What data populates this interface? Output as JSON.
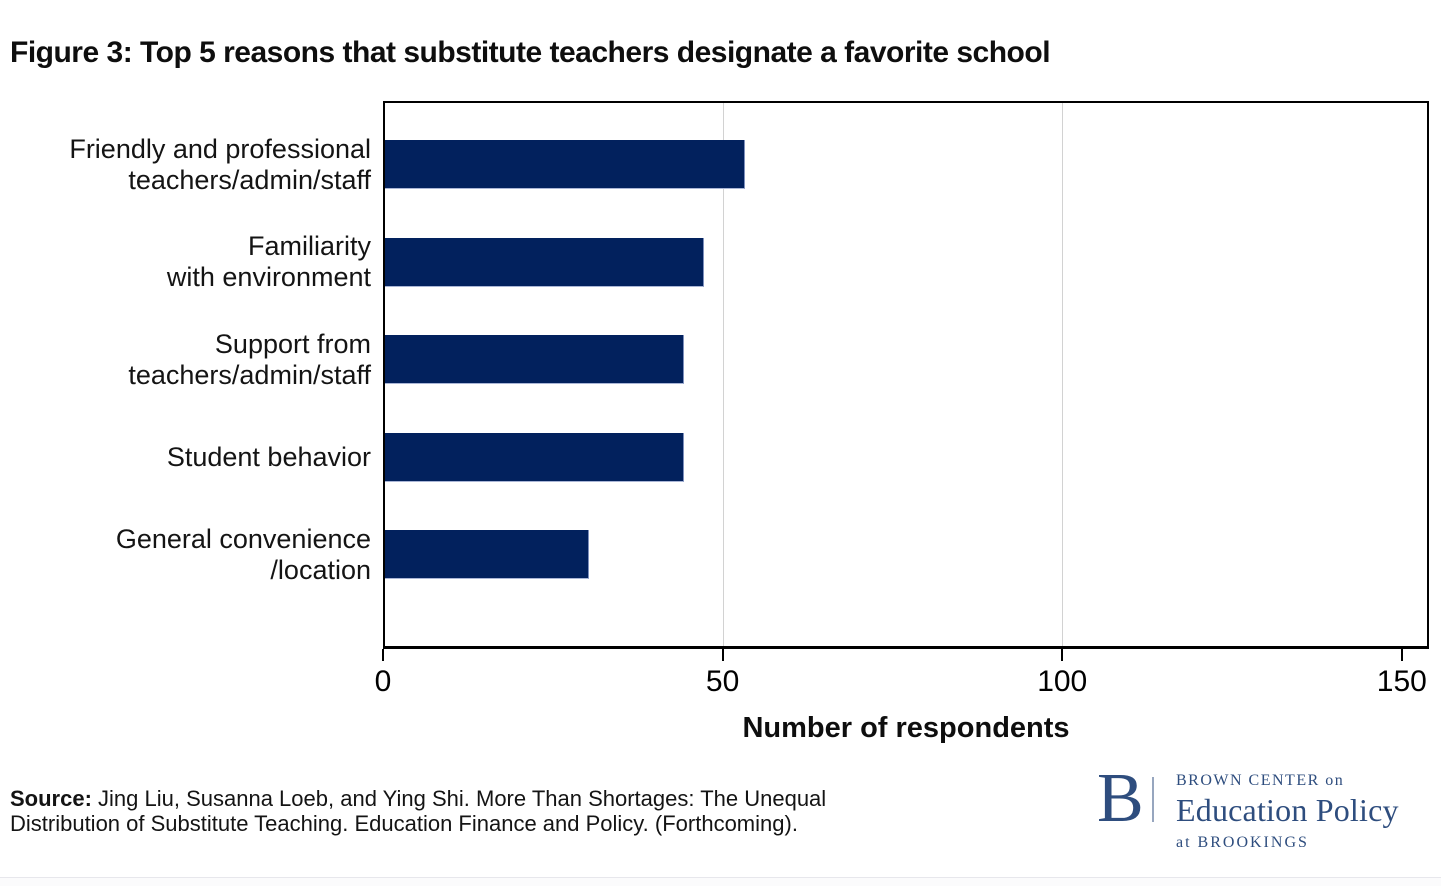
{
  "figure_title": "Figure 3: Top 5 reasons that substitute teachers designate a favorite school",
  "chart_data": {
    "type": "bar",
    "orientation": "horizontal",
    "title": "Figure 3: Top 5 reasons that substitute teachers designate a favorite school",
    "categories": [
      "Friendly and professional teachers/admin/staff",
      "Familiarity with environment",
      "Support from teachers/admin/staff",
      "Student behavior",
      "General convenience /location"
    ],
    "category_display_lines": [
      [
        "Friendly and professional",
        "teachers/admin/staff"
      ],
      [
        "Familiarity",
        "with environment"
      ],
      [
        "Support from",
        "teachers/admin/staff"
      ],
      [
        "Student behavior"
      ],
      [
        "General convenience",
        "/location"
      ]
    ],
    "values": [
      53,
      47,
      44,
      44,
      30
    ],
    "xlabel": "Number of respondents",
    "ylabel": "",
    "xlim": [
      0,
      154
    ],
    "xticks": [
      0,
      50,
      100,
      150
    ],
    "gridlines_x": [
      50,
      100
    ],
    "grid": true,
    "legend": false,
    "bar_color": "#02215d"
  },
  "source": {
    "label": "Source:",
    "line1_rest": " Jing Liu, Susanna Loeb, and Ying Shi. More Than Shortages: The Unequal",
    "line2": "Distribution of Substitute Teaching. Education Finance and Policy. (Forthcoming)."
  },
  "logo": {
    "letter": "B",
    "line1": "BROWN CENTER on",
    "line2": "Education Policy",
    "line3": "at BROOKINGS",
    "color": "#2e4d7e"
  }
}
